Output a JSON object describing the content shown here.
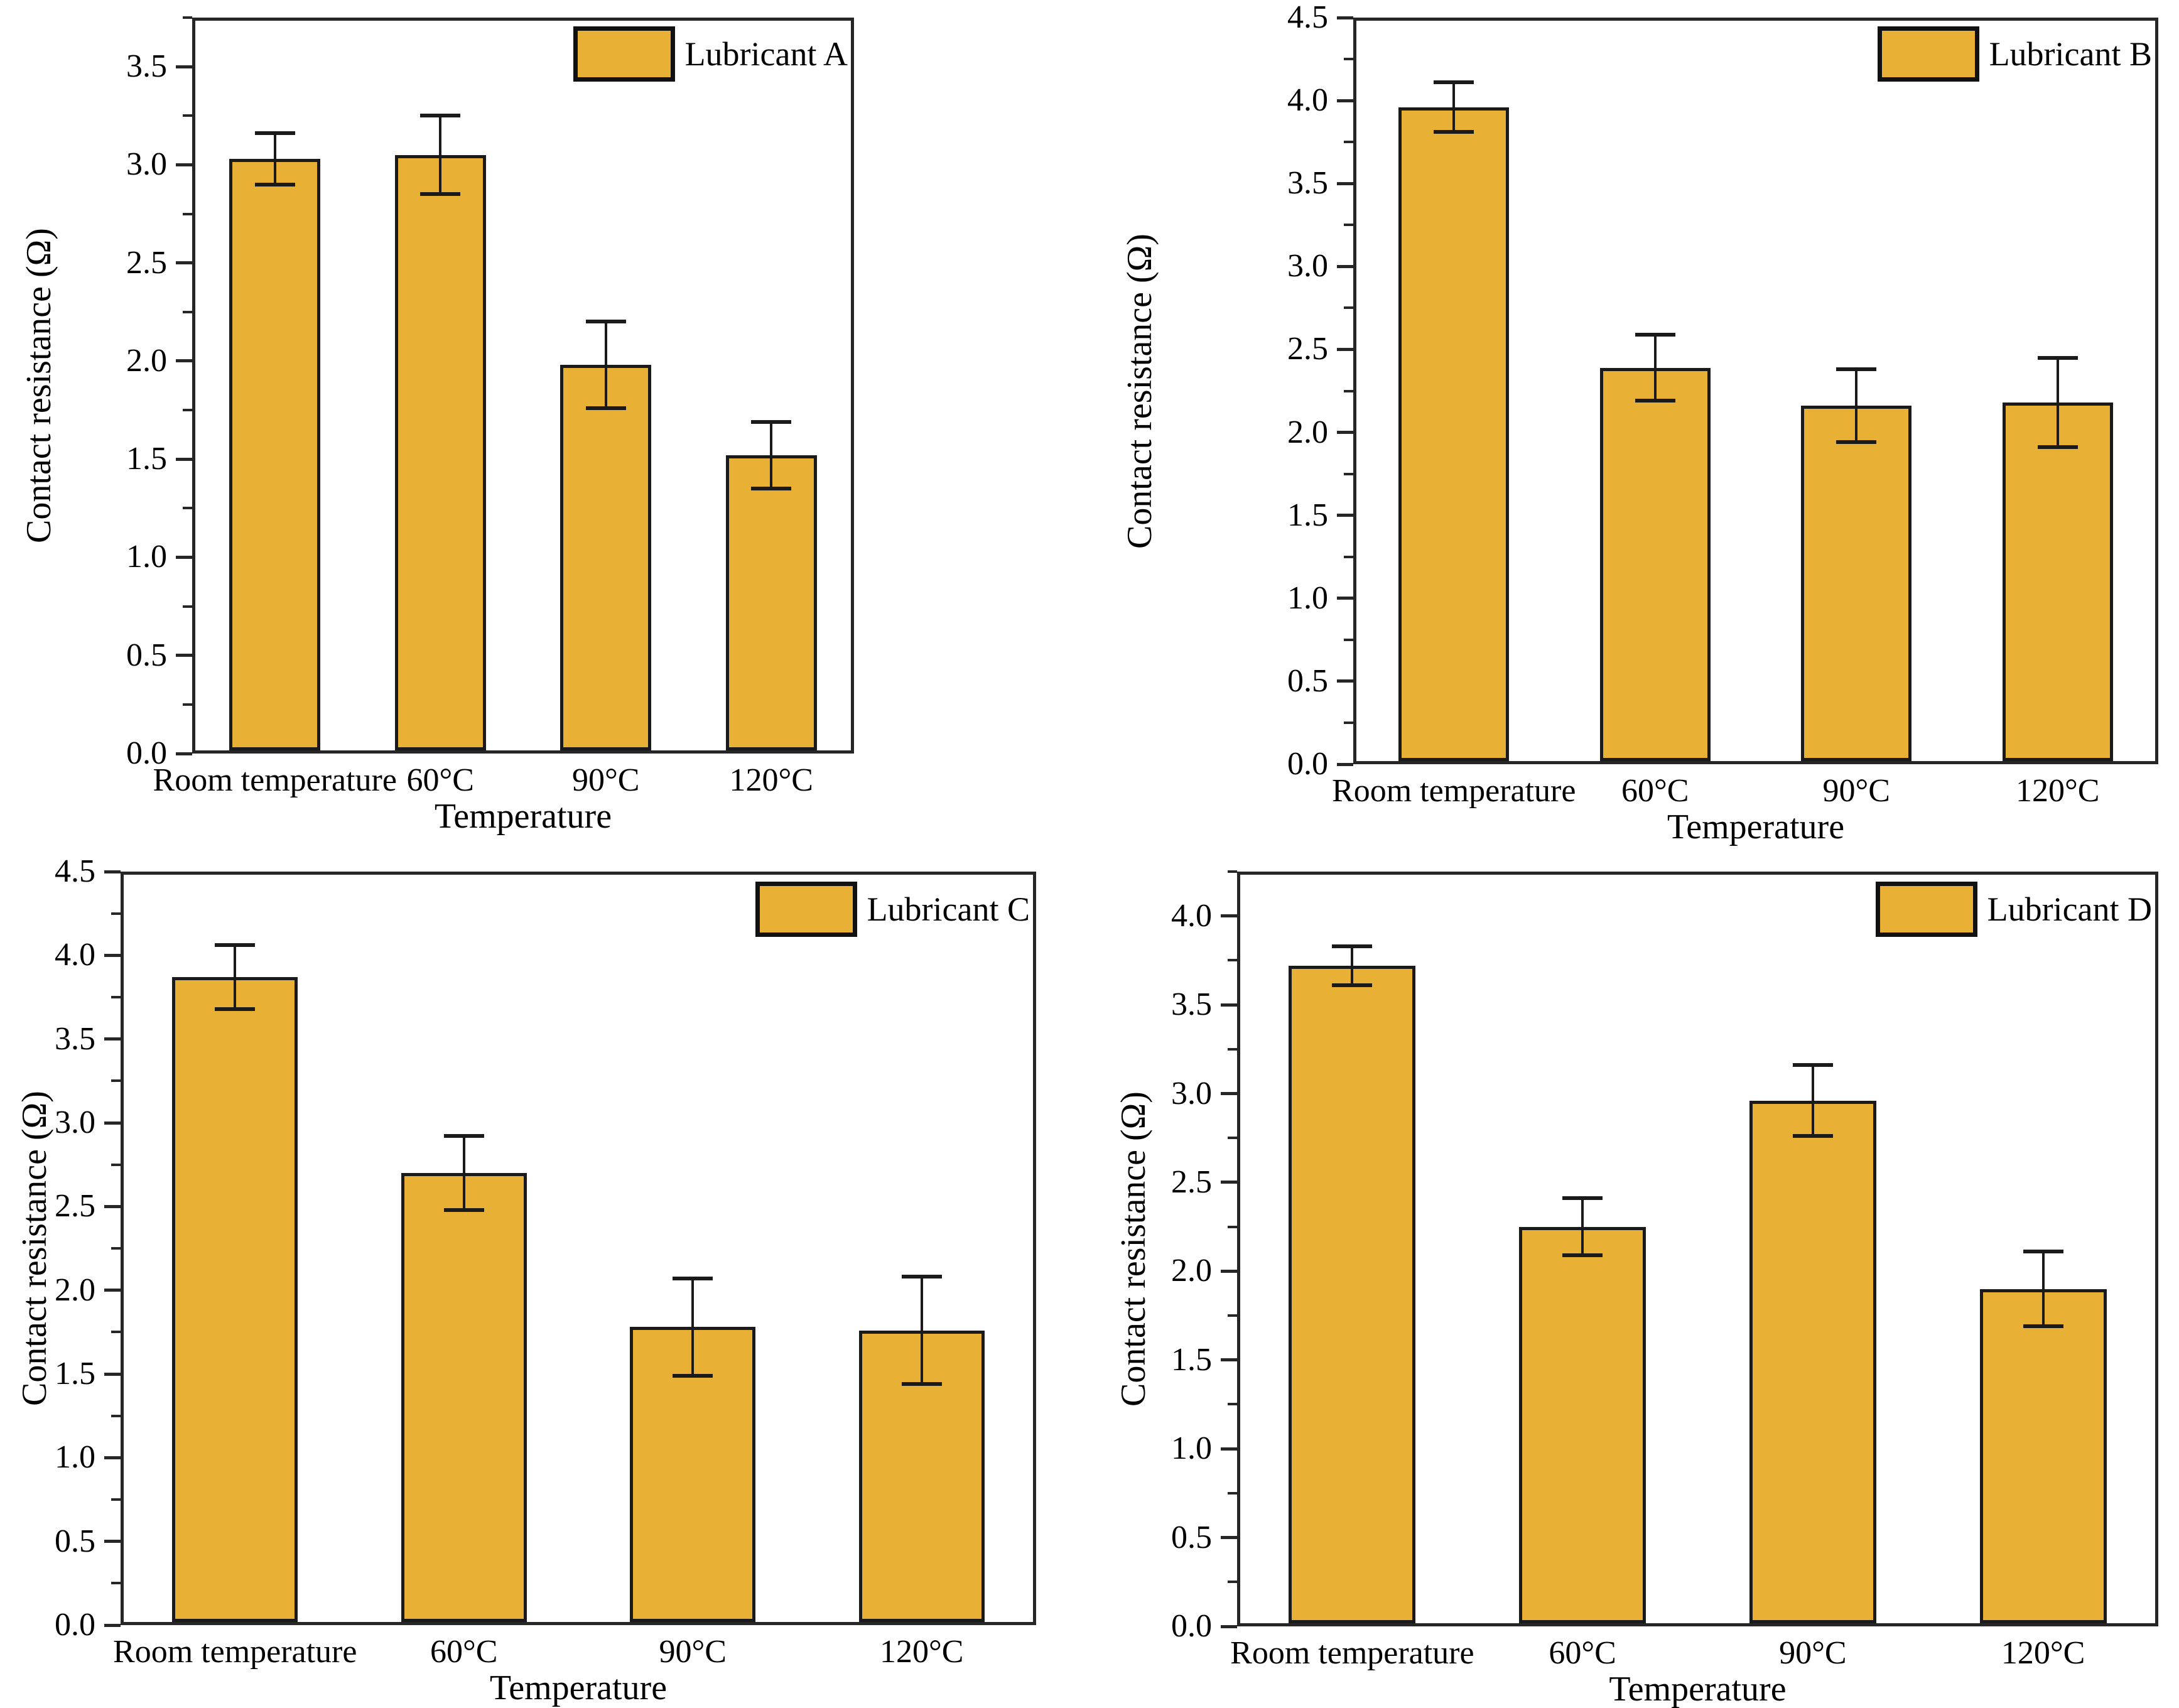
{
  "figure": {
    "description": "2x2 grid of bar charts comparing contact resistance of four lubricants versus temperature",
    "background": "#FFFFFF"
  },
  "colors": {
    "bar_fill": "#E8B034",
    "bar_border": "#1A1A1A",
    "frame": "#262626",
    "error_bar": "#1A1A1A",
    "text": "#000000"
  },
  "chart_data": [
    {
      "id": "lubricant-a",
      "type": "bar",
      "legend": "Lubricant A",
      "legend_position": "top-right-inside",
      "categories": [
        "Room temperature",
        "60°C",
        "90°C",
        "120°C"
      ],
      "values": [
        3.03,
        3.05,
        1.98,
        1.52
      ],
      "errors": [
        0.13,
        0.2,
        0.22,
        0.17
      ],
      "xlabel": "Temperature",
      "ylabel": "Contact resistance（Ω）",
      "ylim": [
        0,
        3.75
      ],
      "ytick_step": 0.5,
      "yminor_step": 0.25,
      "ytick_labels": [
        "0.0",
        "0.5",
        "1.0",
        "1.5",
        "2.0",
        "2.5",
        "3.0",
        "3.5"
      ],
      "grid": false
    },
    {
      "id": "lubricant-b",
      "type": "bar",
      "legend": "Lubricant B",
      "legend_position": "top-right-inside",
      "categories": [
        "Room temperature",
        "60°C",
        "90°C",
        "120°C"
      ],
      "values": [
        3.96,
        2.39,
        2.16,
        2.18
      ],
      "errors": [
        0.15,
        0.2,
        0.22,
        0.27
      ],
      "xlabel": "Temperature",
      "ylabel": "Contact resistance（Ω）",
      "ylim": [
        0,
        4.5
      ],
      "ytick_step": 0.5,
      "yminor_step": 0.25,
      "ytick_labels": [
        "0.0",
        "0.5",
        "1.0",
        "1.5",
        "2.0",
        "2.5",
        "3.0",
        "3.5",
        "4.0",
        "4.5"
      ],
      "grid": false
    },
    {
      "id": "lubricant-c",
      "type": "bar",
      "legend": "Lubricant C",
      "legend_position": "top-right-inside",
      "categories": [
        "Room temperature",
        "60°C",
        "90°C",
        "120°C"
      ],
      "values": [
        3.87,
        2.7,
        1.78,
        1.76
      ],
      "errors": [
        0.19,
        0.22,
        0.29,
        0.32
      ],
      "xlabel": "Temperature",
      "ylabel": "Contact resistance（Ω）",
      "ylim": [
        0,
        4.5
      ],
      "ytick_step": 0.5,
      "yminor_step": 0.25,
      "ytick_labels": [
        "0.0",
        "0.5",
        "1.0",
        "1.5",
        "2.0",
        "2.5",
        "3.0",
        "3.5",
        "4.0",
        "4.5"
      ],
      "grid": false
    },
    {
      "id": "lubricant-d",
      "type": "bar",
      "legend": "Lubricant D",
      "legend_position": "top-right-inside",
      "categories": [
        "Room temperature",
        "60°C",
        "90°C",
        "120°C"
      ],
      "values": [
        3.72,
        2.25,
        2.96,
        1.9
      ],
      "errors": [
        0.11,
        0.16,
        0.2,
        0.21
      ],
      "xlabel": "Temperature",
      "ylabel": "Contact resistance（Ω）",
      "ylim": [
        0,
        4.25
      ],
      "ytick_step": 0.5,
      "yminor_step": 0.25,
      "ytick_labels": [
        "0.0",
        "0.5",
        "1.0",
        "1.5",
        "2.0",
        "2.5",
        "3.0",
        "3.5",
        "4.0"
      ],
      "grid": false
    }
  ]
}
